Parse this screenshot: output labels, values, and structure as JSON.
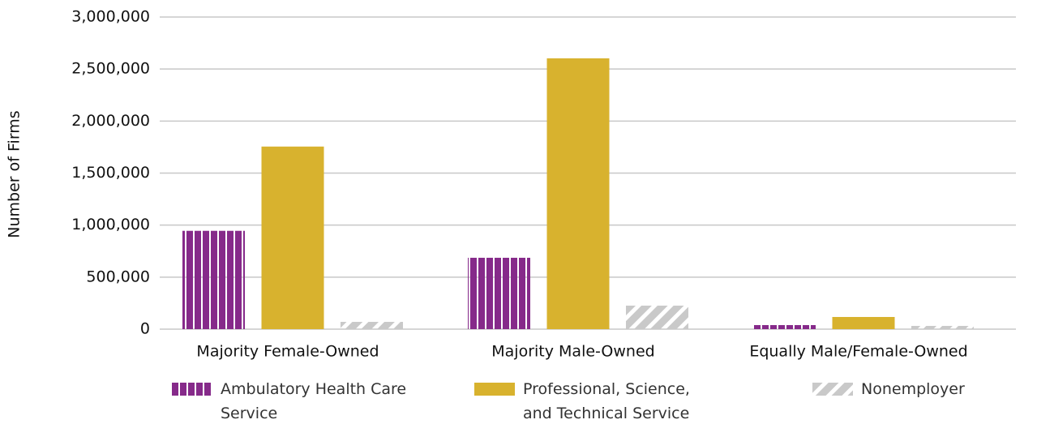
{
  "chart_data": {
    "type": "bar",
    "y_label": "Number of Firms",
    "categories": [
      "Majority Female-Owned",
      "Majority Male-Owned",
      "Equally Male/Female-Owned"
    ],
    "series": [
      {
        "name": "Ambulatory Health Care Service",
        "color": "#862a8a",
        "pattern": "vertical",
        "values": [
          945000,
          686000,
          39000
        ]
      },
      {
        "name": "Professional, Science, and Technical Service",
        "color": "#d8b22e",
        "pattern": "solid",
        "values": [
          1755000,
          2603000,
          117000
        ]
      },
      {
        "name": "Nonemployer",
        "color": "#c9c9c9",
        "pattern": "diagonal",
        "values": [
          70000,
          226000,
          31000
        ]
      }
    ],
    "ylim": [
      0,
      3000000
    ],
    "yticks": [
      0,
      {
        "value": 500000,
        "label": "500,000"
      },
      {
        "value": 1000000,
        "label": "1,000,000"
      },
      {
        "value": 1500000,
        "label": "1,500,000"
      },
      {
        "value": 2000000,
        "label": "2,000,000"
      },
      {
        "value": 2500000,
        "label": "2,500,000"
      },
      {
        "value": 3000000,
        "label": "3,000,000"
      }
    ],
    "grid": true,
    "legend": "bottom"
  }
}
